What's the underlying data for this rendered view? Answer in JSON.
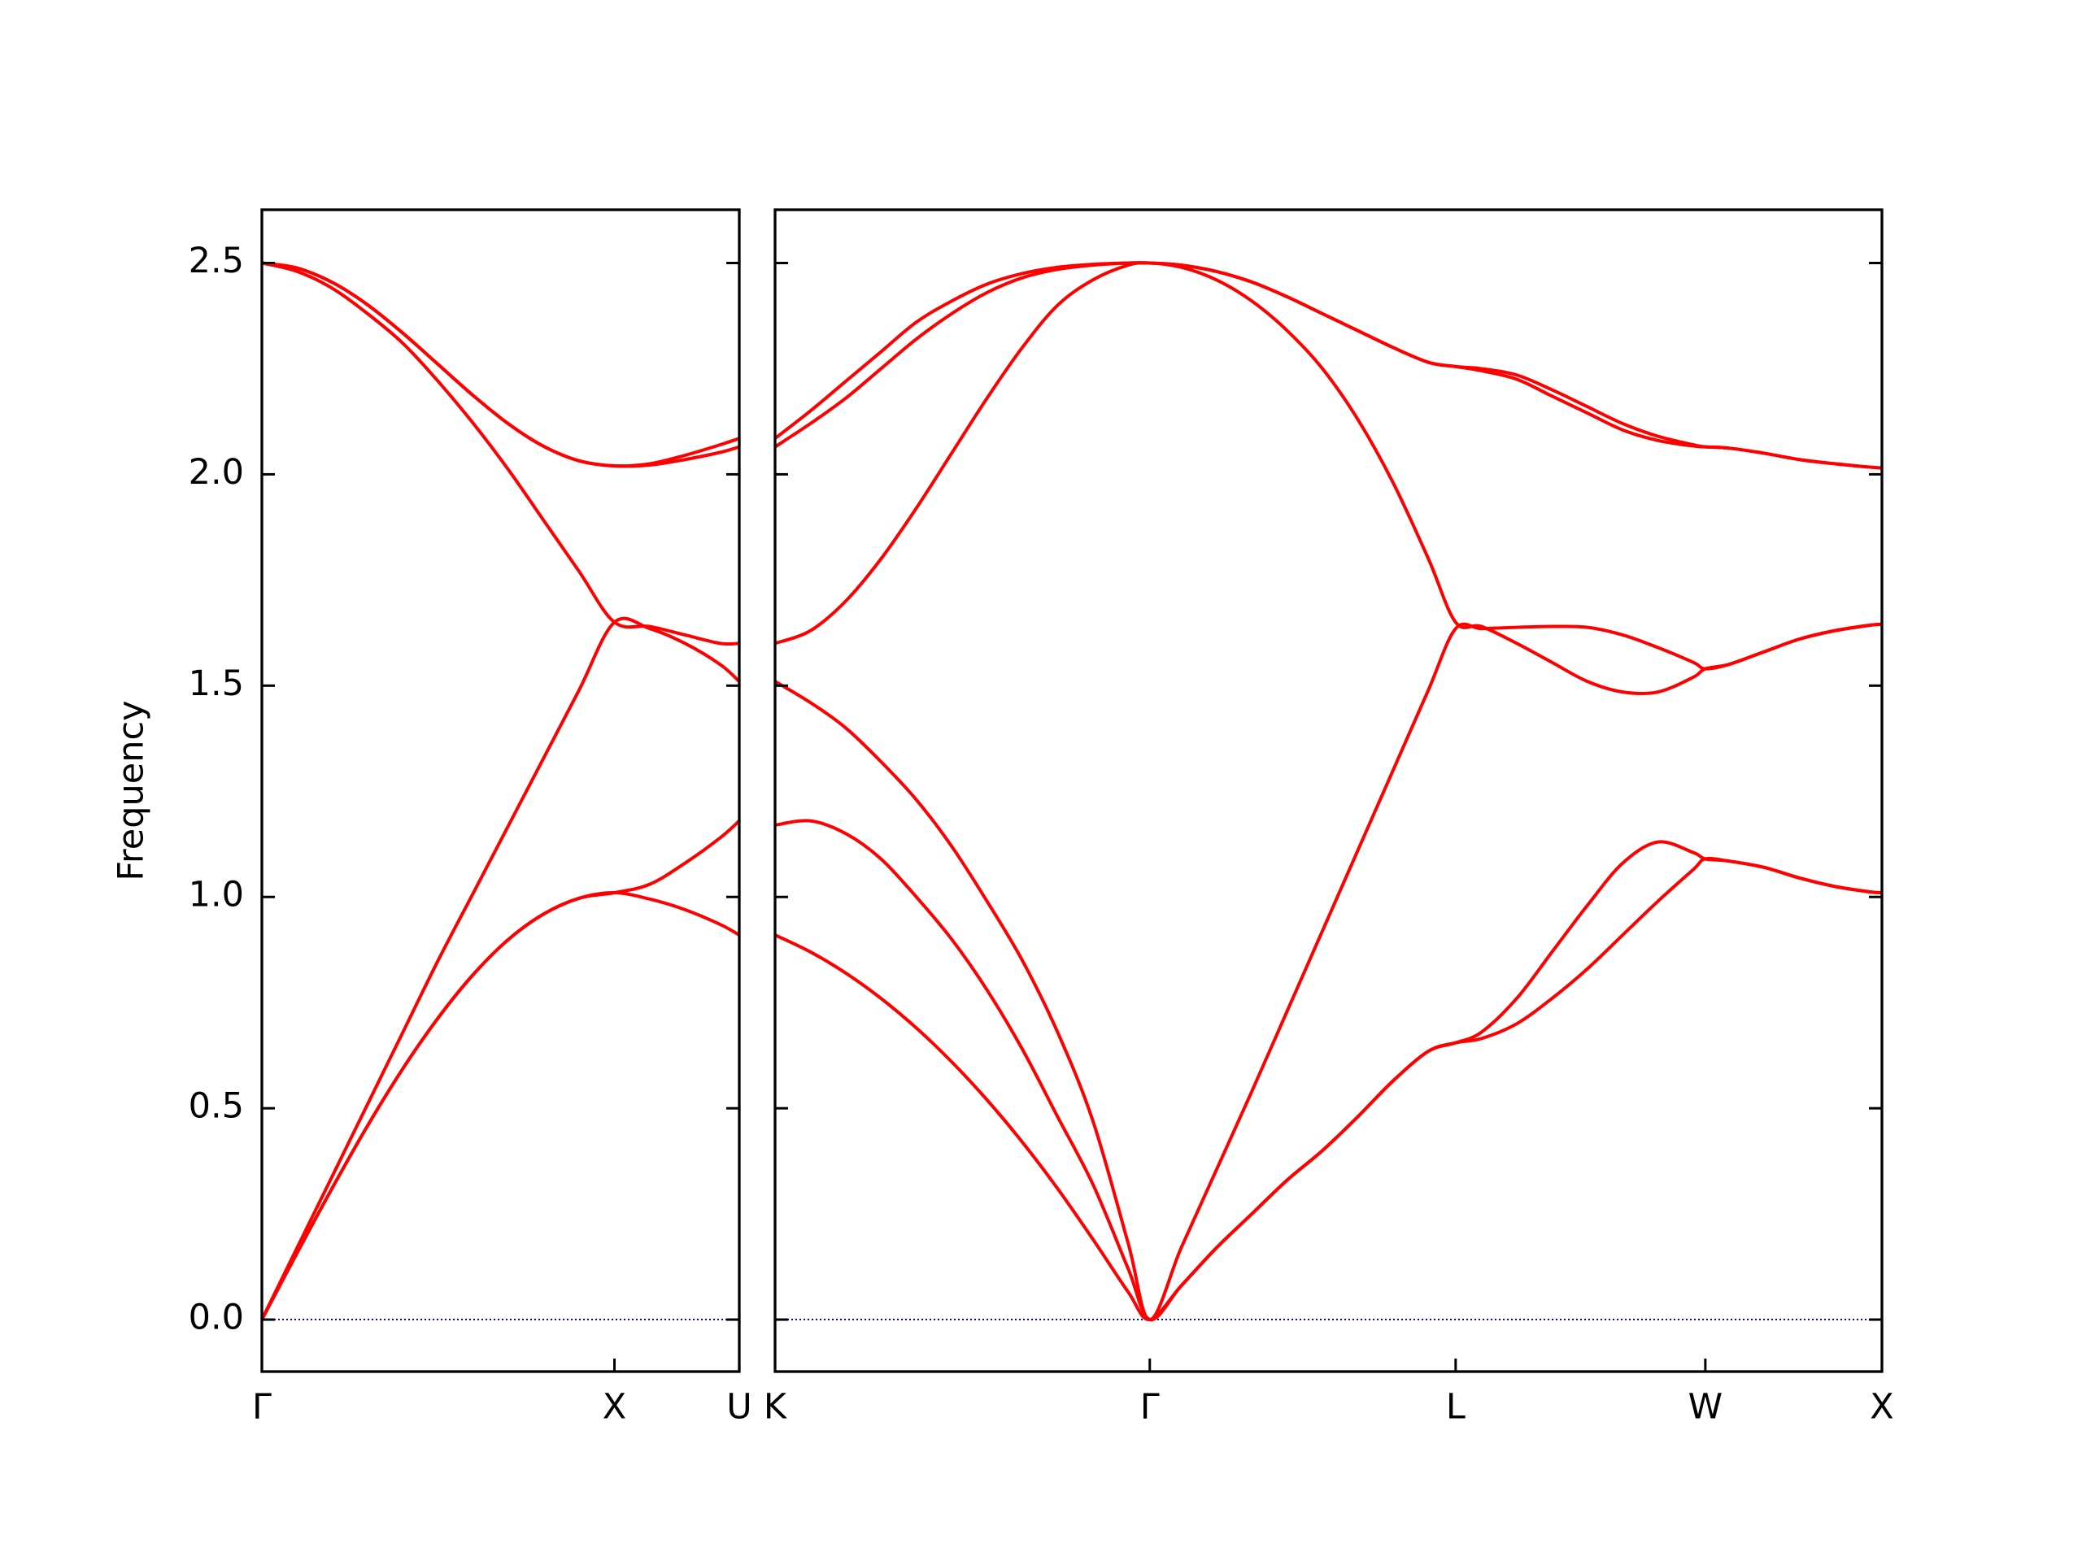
{
  "chart_data": [
    {
      "type": "line",
      "ylabel": "Frequency",
      "color": "#ff0000",
      "hline": 0,
      "hline_color": "#0000cc",
      "xlim": [
        0,
        1.354
      ],
      "xticks": [
        {
          "value": 0,
          "label": "Γ"
        },
        {
          "value": 1,
          "label": "X"
        },
        {
          "value": 1.354,
          "label": "U"
        }
      ],
      "ylim": [
        -0.123,
        2.626
      ],
      "yticks": [
        {
          "value": 0,
          "label": "0.0"
        },
        {
          "value": 0.5,
          "label": "0.5"
        },
        {
          "value": 1,
          "label": "1.0"
        },
        {
          "value": 1.5,
          "label": "1.5"
        },
        {
          "value": 2,
          "label": "2.0"
        },
        {
          "value": 2.5,
          "label": "2.5"
        }
      ],
      "x": [
        0,
        0.1,
        0.2,
        0.3,
        0.4,
        0.5,
        0.6,
        0.7,
        0.8,
        0.9,
        1,
        1.1,
        1.2,
        1.3,
        1.354
      ],
      "series": [
        {
          "values": [
            0,
            0.158,
            0.312,
            0.459,
            0.594,
            0.714,
            0.817,
            0.9,
            0.96,
            0.997,
            1.01,
            0.995,
            0.97,
            0.935,
            0.91
          ]
        },
        {
          "values": [
            0,
            0.158,
            0.312,
            0.459,
            0.594,
            0.714,
            0.817,
            0.9,
            0.96,
            0.997,
            1.01,
            1.03,
            1.08,
            1.14,
            1.18
          ]
        },
        {
          "values": [
            0,
            0.17,
            0.34,
            0.51,
            0.68,
            0.85,
            1.01,
            1.17,
            1.33,
            1.49,
            1.65,
            1.635,
            1.6,
            1.55,
            1.51
          ]
        },
        {
          "values": [
            2.5,
            2.48,
            2.44,
            2.38,
            2.31,
            2.22,
            2.12,
            2.01,
            1.89,
            1.77,
            1.65,
            1.64,
            1.62,
            1.6,
            1.6
          ]
        },
        {
          "values": [
            2.5,
            2.488,
            2.454,
            2.401,
            2.334,
            2.26,
            2.186,
            2.119,
            2.066,
            2.032,
            2.02,
            2.022,
            2.035,
            2.052,
            2.065
          ]
        },
        {
          "values": [
            2.5,
            2.488,
            2.454,
            2.401,
            2.334,
            2.26,
            2.186,
            2.119,
            2.066,
            2.032,
            2.02,
            2.025,
            2.045,
            2.07,
            2.085
          ]
        }
      ]
    },
    {
      "type": "line",
      "color": "#ff0000",
      "hline": 0,
      "hline_color": "#0000cc",
      "xlim": [
        0,
        3.134
      ],
      "xticks": [
        {
          "value": 0,
          "label": "K"
        },
        {
          "value": 1.061,
          "label": "Γ"
        },
        {
          "value": 1.927,
          "label": "L"
        },
        {
          "value": 2.634,
          "label": "W"
        },
        {
          "value": 3.134,
          "label": "X"
        }
      ],
      "ylim": [
        -0.123,
        2.626
      ],
      "yticks": [
        0,
        0.5,
        1,
        1.5,
        2,
        2.5
      ],
      "x": [
        0,
        0.1,
        0.2,
        0.3,
        0.4,
        0.5,
        0.6,
        0.7,
        0.8,
        0.9,
        1,
        1.061,
        1.15,
        1.25,
        1.35,
        1.45,
        1.55,
        1.65,
        1.75,
        1.85,
        1.927,
        2,
        2.1,
        2.2,
        2.3,
        2.4,
        2.5,
        2.6,
        2.634,
        2.7,
        2.8,
        2.9,
        3,
        3.1,
        3.134
      ],
      "series": [
        {
          "values": [
            0.91,
            0.87,
            0.82,
            0.76,
            0.69,
            0.61,
            0.52,
            0.42,
            0.31,
            0.19,
            0.065,
            0,
            0.08,
            0.17,
            0.25,
            0.33,
            0.4,
            0.48,
            0.565,
            0.635,
            0.655,
            0.665,
            0.7,
            0.76,
            0.83,
            0.91,
            0.99,
            1.065,
            1.09,
            1.085,
            1.07,
            1.045,
            1.025,
            1.012,
            1.01
          ]
        },
        {
          "values": [
            1.17,
            1.18,
            1.15,
            1.09,
            1,
            0.9,
            0.78,
            0.64,
            0.48,
            0.32,
            0.12,
            0,
            0.08,
            0.17,
            0.25,
            0.33,
            0.4,
            0.48,
            0.565,
            0.635,
            0.655,
            0.68,
            0.76,
            0.87,
            0.98,
            1.08,
            1.13,
            1.105,
            1.09,
            1.085,
            1.07,
            1.045,
            1.025,
            1.012,
            1.01
          ]
        },
        {
          "values": [
            1.51,
            1.46,
            1.4,
            1.32,
            1.23,
            1.12,
            0.99,
            0.85,
            0.68,
            0.47,
            0.18,
            0,
            0.17,
            0.355,
            0.54,
            0.73,
            0.92,
            1.11,
            1.3,
            1.49,
            1.635,
            1.635,
            1.638,
            1.64,
            1.638,
            1.62,
            1.59,
            1.555,
            1.54,
            1.55,
            1.58,
            1.61,
            1.63,
            1.643,
            1.645
          ]
        },
        {
          "values": [
            1.6,
            1.63,
            1.7,
            1.8,
            1.92,
            2.05,
            2.18,
            2.3,
            2.4,
            2.46,
            2.495,
            2.5,
            2.49,
            2.46,
            2.41,
            2.34,
            2.25,
            2.13,
            1.98,
            1.8,
            1.65,
            1.64,
            1.6,
            1.555,
            1.51,
            1.485,
            1.485,
            1.52,
            1.54,
            1.55,
            1.58,
            1.61,
            1.63,
            1.643,
            1.645
          ]
        },
        {
          "values": [
            2.065,
            2.12,
            2.18,
            2.25,
            2.32,
            2.38,
            2.43,
            2.465,
            2.485,
            2.495,
            2.5,
            2.5,
            2.495,
            2.48,
            2.455,
            2.42,
            2.38,
            2.34,
            2.3,
            2.265,
            2.255,
            2.245,
            2.225,
            2.185,
            2.145,
            2.105,
            2.08,
            2.067,
            2.065,
            2.062,
            2.05,
            2.035,
            2.025,
            2.017,
            2.015
          ]
        },
        {
          "values": [
            2.085,
            2.15,
            2.22,
            2.29,
            2.36,
            2.41,
            2.45,
            2.475,
            2.49,
            2.497,
            2.5,
            2.5,
            2.495,
            2.48,
            2.455,
            2.42,
            2.38,
            2.34,
            2.3,
            2.265,
            2.255,
            2.25,
            2.235,
            2.2,
            2.16,
            2.12,
            2.09,
            2.07,
            2.065,
            2.062,
            2.05,
            2.035,
            2.025,
            2.017,
            2.015
          ]
        }
      ]
    }
  ]
}
